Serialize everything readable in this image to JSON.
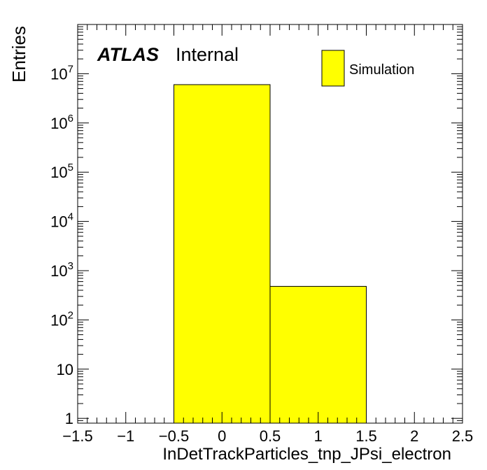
{
  "chart_data": {
    "type": "bar",
    "style": "histogram",
    "log_y": true,
    "xlabel": "InDetTrackParticles_tnp_JPsi_electron",
    "ylabel": "Entries",
    "xlim": [
      -1.5,
      2.5
    ],
    "ylim": [
      0.8,
      100000000
    ],
    "x_ticks": [
      -1.5,
      -1,
      -0.5,
      0,
      0.5,
      1,
      1.5,
      2,
      2.5
    ],
    "x_tick_labels": [
      "−1.5",
      "−1",
      "−0.5",
      "0",
      "0.5",
      "1",
      "1.5",
      "2",
      "2.5"
    ],
    "y_ticks": [
      {
        "value": 1,
        "base": "1",
        "exp": ""
      },
      {
        "value": 10,
        "base": "10",
        "exp": ""
      },
      {
        "value": 100,
        "base": "10",
        "exp": "2"
      },
      {
        "value": 1000,
        "base": "10",
        "exp": "3"
      },
      {
        "value": 10000,
        "base": "10",
        "exp": "4"
      },
      {
        "value": 100000,
        "base": "10",
        "exp": "5"
      },
      {
        "value": 1000000,
        "base": "10",
        "exp": "6"
      },
      {
        "value": 10000000,
        "base": "10",
        "exp": "7"
      }
    ],
    "bins": [
      {
        "x0": -0.5,
        "x1": 0.5,
        "value": 6000000
      },
      {
        "x0": 0.5,
        "x1": 1.5,
        "value": 480
      }
    ],
    "series": [
      {
        "name": "Simulation",
        "color": "#ffff00"
      }
    ],
    "fill_color": "#ffff00",
    "edge_color": "#000000",
    "legend_position": "top-right",
    "annotation": {
      "bold": "ATLAS",
      "normal": "Internal"
    }
  }
}
